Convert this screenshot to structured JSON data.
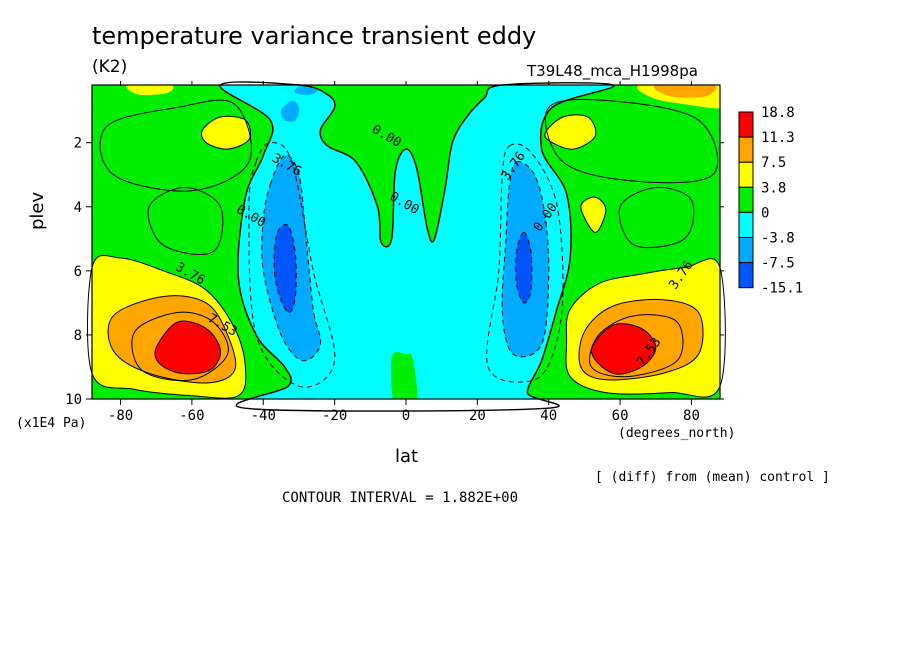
{
  "chart_data": {
    "type": "heatmap",
    "title": "temperature variance transient eddy",
    "units": "(K2)",
    "run_label": "T39L48_mca_H1998pa",
    "xlabel": "lat",
    "x_units": "(degrees_north)",
    "ylabel": "plev",
    "y_units": "(x1E4 Pa)",
    "note": "[ (diff) from (mean) control ]",
    "contour_interval": "CONTOUR INTERVAL = 1.882E+00",
    "xlim": [
      -88,
      88
    ],
    "ylim": [
      0.2,
      10
    ],
    "y_inverted": true,
    "x_ticks": [
      "-80",
      "-60",
      "-40",
      "-20",
      "0",
      "20",
      "40",
      "60",
      "80"
    ],
    "y_ticks": [
      "2",
      "4",
      "6",
      "8",
      "10"
    ],
    "colorbar": {
      "labels": [
        "18.8",
        "11.3",
        "7.5",
        "3.8",
        "0",
        "-3.8",
        "-7.5",
        "-15.1"
      ],
      "colors": [
        "#ff0000",
        "#ffa500",
        "#ffff00",
        "#00ee00",
        "#00ffff",
        "#00aaff",
        "#0055ff"
      ]
    },
    "contour_labels": [
      {
        "text": "0.00",
        "lon": -6,
        "lev": 1.9
      },
      {
        "text": "0.00",
        "lon": -1,
        "lev": 4.0
      },
      {
        "text": "0.00",
        "lon": -44,
        "lev": 4.4
      },
      {
        "text": "0.00",
        "lon": 40,
        "lev": 4.4
      },
      {
        "text": "3.76",
        "lon": -34,
        "lev": 2.8
      },
      {
        "text": "3.76",
        "lon": 31,
        "lev": 2.8
      },
      {
        "text": "3.76",
        "lon": -61,
        "lev": 6.2
      },
      {
        "text": "3.76",
        "lon": 78,
        "lev": 6.2
      },
      {
        "text": "7.53",
        "lon": -52,
        "lev": 7.8
      },
      {
        "text": "7.53",
        "lon": 69,
        "lev": 8.6
      }
    ],
    "features": [
      {
        "type": "maximum",
        "lon": -60,
        "lev": 8.5,
        "approx_value": 18.8
      },
      {
        "type": "maximum",
        "lon": 60,
        "lev": 8.5,
        "approx_value": 18.8
      },
      {
        "type": "minimum",
        "lon": -34,
        "lev": 5.8,
        "approx_value": -9
      },
      {
        "type": "minimum",
        "lon": 33,
        "lev": 5.8,
        "approx_value": -9
      },
      {
        "type": "maximum",
        "lon": -50,
        "lev": 1.7,
        "approx_value": 5
      },
      {
        "type": "maximum",
        "lon": 47,
        "lev": 1.7,
        "approx_value": 5
      },
      {
        "type": "maximum",
        "lon": -72,
        "lev": 0.3,
        "approx_value": 5
      },
      {
        "type": "maximum",
        "lon": 78,
        "lev": 0.3,
        "approx_value": 8
      },
      {
        "type": "maximum",
        "lon": 52,
        "lev": 4.1,
        "approx_value": 4.5
      }
    ]
  }
}
